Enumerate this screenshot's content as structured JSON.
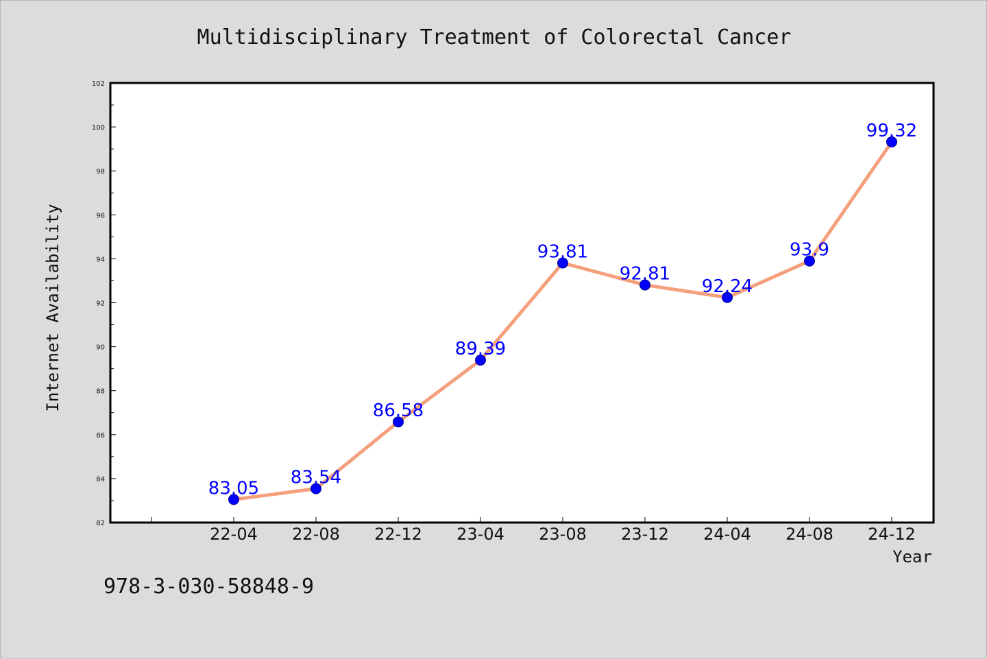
{
  "chart_data": {
    "type": "line",
    "title": "Multidisciplinary Treatment of Colorectal Cancer",
    "xlabel": "Year",
    "ylabel": "Internet Availability",
    "categories": [
      "22-04",
      "22-08",
      "22-12",
      "23-04",
      "23-08",
      "23-12",
      "24-04",
      "24-08",
      "24-12"
    ],
    "series": [
      {
        "values": [
          83.05,
          83.54,
          86.58,
          89.39,
          93.81,
          92.81,
          92.24,
          93.9,
          99.32
        ]
      }
    ],
    "data_labels": [
      "83.05",
      "83.54",
      "86.58",
      "89.39",
      "93.81",
      "92.81",
      "92.24",
      "93.9",
      "99.32"
    ],
    "ylim": [
      82,
      102
    ],
    "yticks": [
      82,
      84,
      86,
      88,
      90,
      92,
      94,
      96,
      98,
      100,
      102
    ],
    "grid": false,
    "line_color": "#f4a07c",
    "marker_color": "#0000ff",
    "label_color": "#0000ff"
  },
  "footnote": "978-3-030-58848-9"
}
